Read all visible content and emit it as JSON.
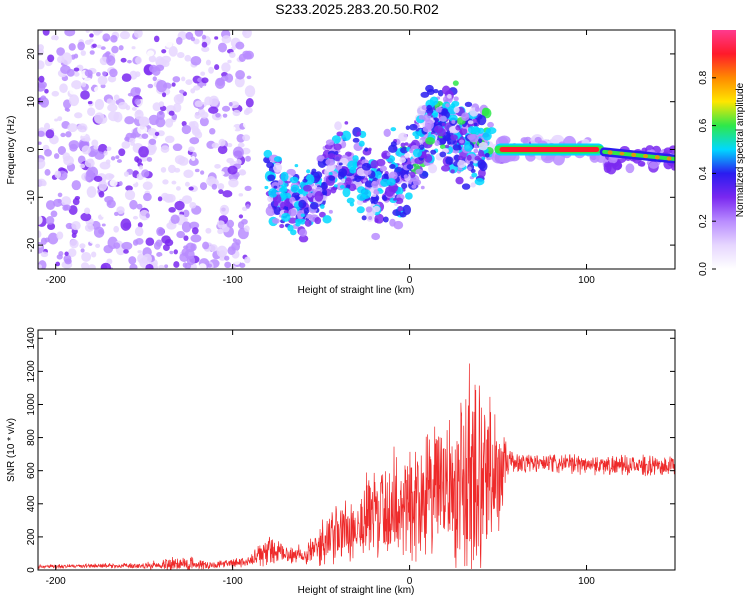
{
  "title": "S233.2025.283.20.50.R02",
  "chart_data": [
    {
      "type": "heatmap",
      "xlabel": "Height of straight line (km)",
      "ylabel": "Frequency (Hz)",
      "xlim": [
        -210,
        150
      ],
      "ylim": [
        -25,
        25
      ],
      "xticks": [
        -200,
        -100,
        0,
        100
      ],
      "yticks": [
        -20,
        -10,
        0,
        10,
        20
      ],
      "colorbar": {
        "label": "Normalized spectral amplitude",
        "range": [
          0,
          1
        ],
        "ticks": [
          "0.0",
          "0.2",
          "0.4",
          "0.6",
          "0.8"
        ],
        "tick_values": [
          0.0,
          0.2,
          0.4,
          0.6,
          0.8
        ],
        "colors": [
          "#ffffff",
          "#e6d6ff",
          "#b98cff",
          "#7a28f0",
          "#2a1cf0",
          "#00d8ff",
          "#2ee84a",
          "#ffe600",
          "#ff8a00",
          "#ff1a2a",
          "#ff3a8e"
        ]
      },
      "features": [
        {
          "name": "background noise",
          "x_range": [
            -210,
            -90
          ],
          "y_range": [
            -25,
            25
          ],
          "amplitude": 0.1
        },
        {
          "name": "rising signal",
          "path_x": [
            -80,
            -60,
            -40,
            -20,
            0,
            15,
            30,
            45
          ],
          "path_y": [
            -8,
            -12,
            -2,
            -8,
            -4,
            7,
            2,
            1
          ],
          "amplitude": 0.2
        },
        {
          "name": "steady line",
          "x_range": [
            48,
            110
          ],
          "frequency": 0,
          "amplitude": 0.85
        },
        {
          "name": "descending line",
          "x_range": [
            110,
            150
          ],
          "frequency": -2,
          "amplitude": 0.55
        }
      ]
    },
    {
      "type": "line",
      "xlabel": "Height of straight line (km)",
      "ylabel": "SNR (10 * v/v)",
      "xlim": [
        -210,
        150
      ],
      "ylim": [
        0,
        1450
      ],
      "xticks": [
        -200,
        -100,
        0,
        100
      ],
      "yticks": [
        0,
        200,
        400,
        600,
        800,
        1000,
        1200,
        1400
      ],
      "series": [
        {
          "name": "SNR",
          "color": "#ee2a2a",
          "x": [
            -210,
            -180,
            -150,
            -130,
            -110,
            -90,
            -80,
            -70,
            -60,
            -50,
            -40,
            -30,
            -20,
            -10,
            0,
            10,
            20,
            30,
            35,
            40,
            45,
            50,
            55,
            60,
            80,
            100,
            120,
            150
          ],
          "mean": [
            20,
            25,
            25,
            40,
            30,
            50,
            120,
            90,
            100,
            150,
            220,
            280,
            330,
            380,
            420,
            450,
            500,
            520,
            560,
            540,
            520,
            580,
            650,
            650,
            640,
            640,
            630,
            630
          ],
          "spread": [
            15,
            15,
            20,
            60,
            25,
            40,
            120,
            60,
            80,
            150,
            250,
            300,
            350,
            420,
            450,
            450,
            500,
            650,
            900,
            800,
            700,
            400,
            120,
            80,
            70,
            70,
            70,
            70
          ]
        }
      ]
    }
  ]
}
